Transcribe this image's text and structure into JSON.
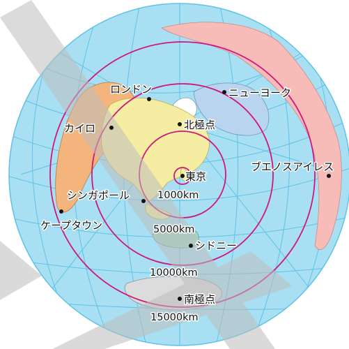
{
  "map": {
    "projection": "azimuthal-equidistant-centered-on-tokyo",
    "colors": {
      "ocean": "#a9dff2",
      "grid": "#5cc3e6",
      "distance_ring": "#d1157e",
      "land_asia_europe": "#f5eea2",
      "land_africa": "#f3b57c",
      "land_north_america": "#b9d4ee",
      "land_south_america": "#f7bcb8",
      "land_australia": "#9ed8c8",
      "land_antarctica": "#dcdcdc",
      "land_greenland": "#ffffff",
      "watermark": "#bdbdbd"
    },
    "places": [
      {
        "id": "london",
        "label": "ロンドン"
      },
      {
        "id": "cairo",
        "label": "カイロ"
      },
      {
        "id": "north-pole",
        "label": "北極点"
      },
      {
        "id": "new-york",
        "label": "ニューヨーク"
      },
      {
        "id": "tokyo",
        "label": "東京"
      },
      {
        "id": "singapore",
        "label": "シンガポール"
      },
      {
        "id": "buenos-aires",
        "label": "ブエノスアイレス"
      },
      {
        "id": "cape-town",
        "label": "ケープタウン"
      },
      {
        "id": "sydney",
        "label": "シドニー"
      },
      {
        "id": "south-pole",
        "label": "南極点"
      }
    ],
    "distance_labels": [
      "1000km",
      "5000km",
      "10000km",
      "15000km"
    ]
  }
}
